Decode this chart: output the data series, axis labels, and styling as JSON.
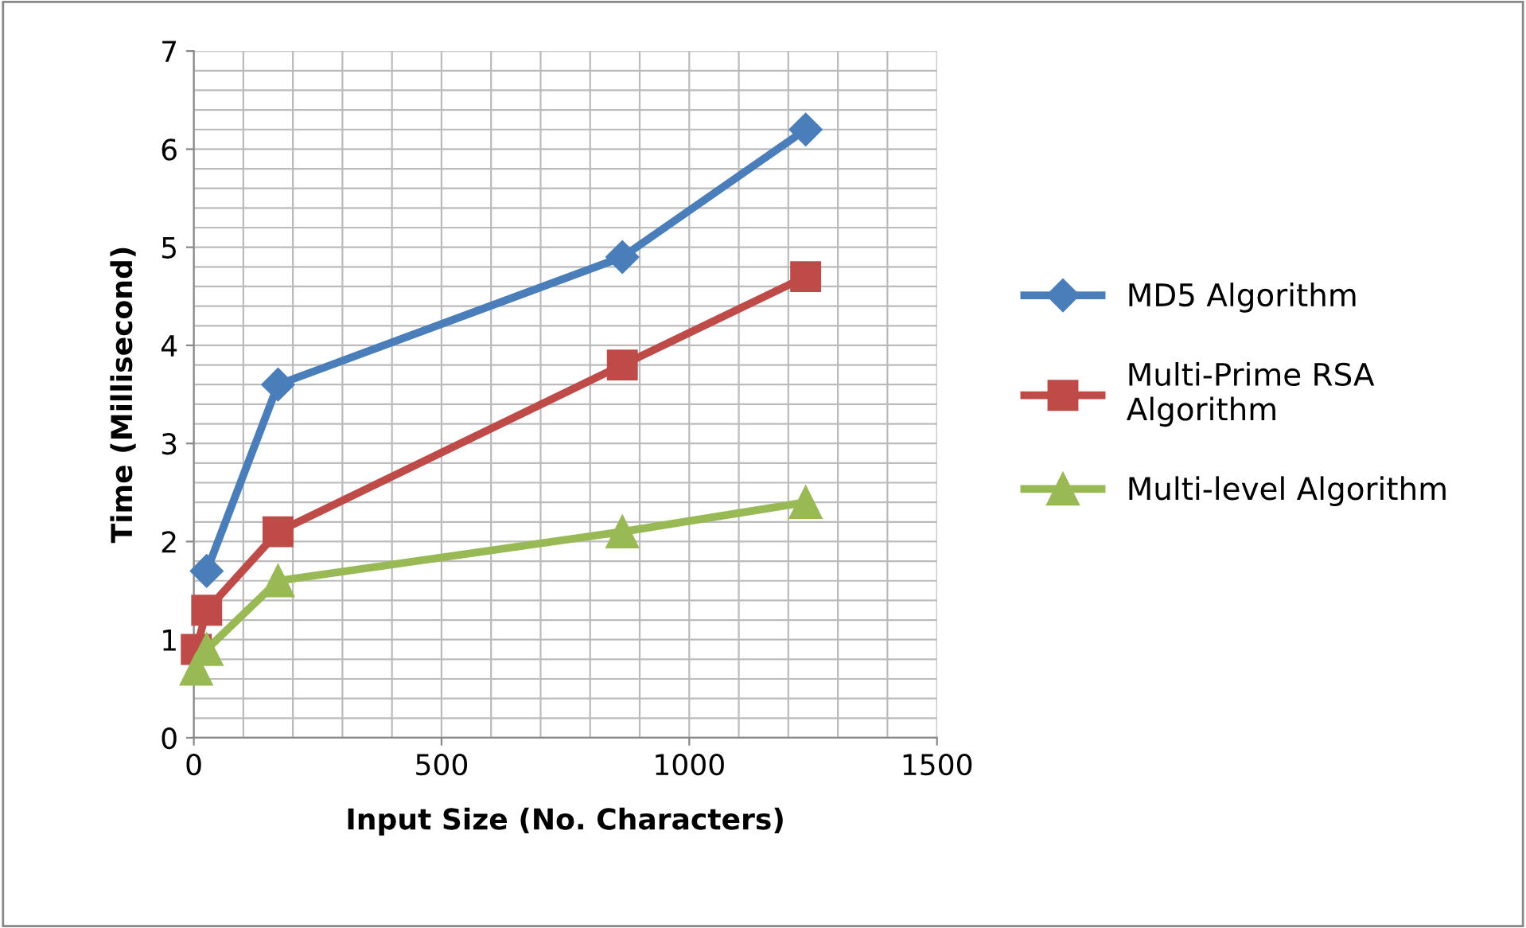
{
  "chart_data": {
    "type": "line",
    "xlabel": "Input Size (No. Characters)",
    "ylabel": "Time (Millisecond)",
    "xlim": [
      0,
      1500
    ],
    "xticks": [
      0,
      500,
      1000,
      1500
    ],
    "ylim": [
      0,
      7
    ],
    "yticks": [
      0,
      1,
      2,
      3,
      4,
      5,
      6,
      7
    ],
    "grid": true,
    "legend": "right",
    "line_style": "solid",
    "series": [
      {
        "name": "MD5 Algorithm",
        "color": "#4a7ebb",
        "marker": "diamond",
        "x": [
          26,
          170,
          865,
          1235
        ],
        "values": [
          1.7,
          3.6,
          4.9,
          6.2
        ]
      },
      {
        "name": "Multi-Prime RSA Algorithm",
        "color": "#be4b48",
        "marker": "square",
        "x": [
          5,
          26,
          170,
          865,
          1235
        ],
        "values": [
          0.9,
          1.3,
          2.1,
          3.8,
          4.7
        ]
      },
      {
        "name": "Multi-level Algorithm",
        "color": "#98b954",
        "marker": "triangle",
        "x": [
          5,
          26,
          170,
          865,
          1235
        ],
        "values": [
          0.7,
          0.9,
          1.6,
          2.1,
          2.4
        ]
      }
    ]
  }
}
